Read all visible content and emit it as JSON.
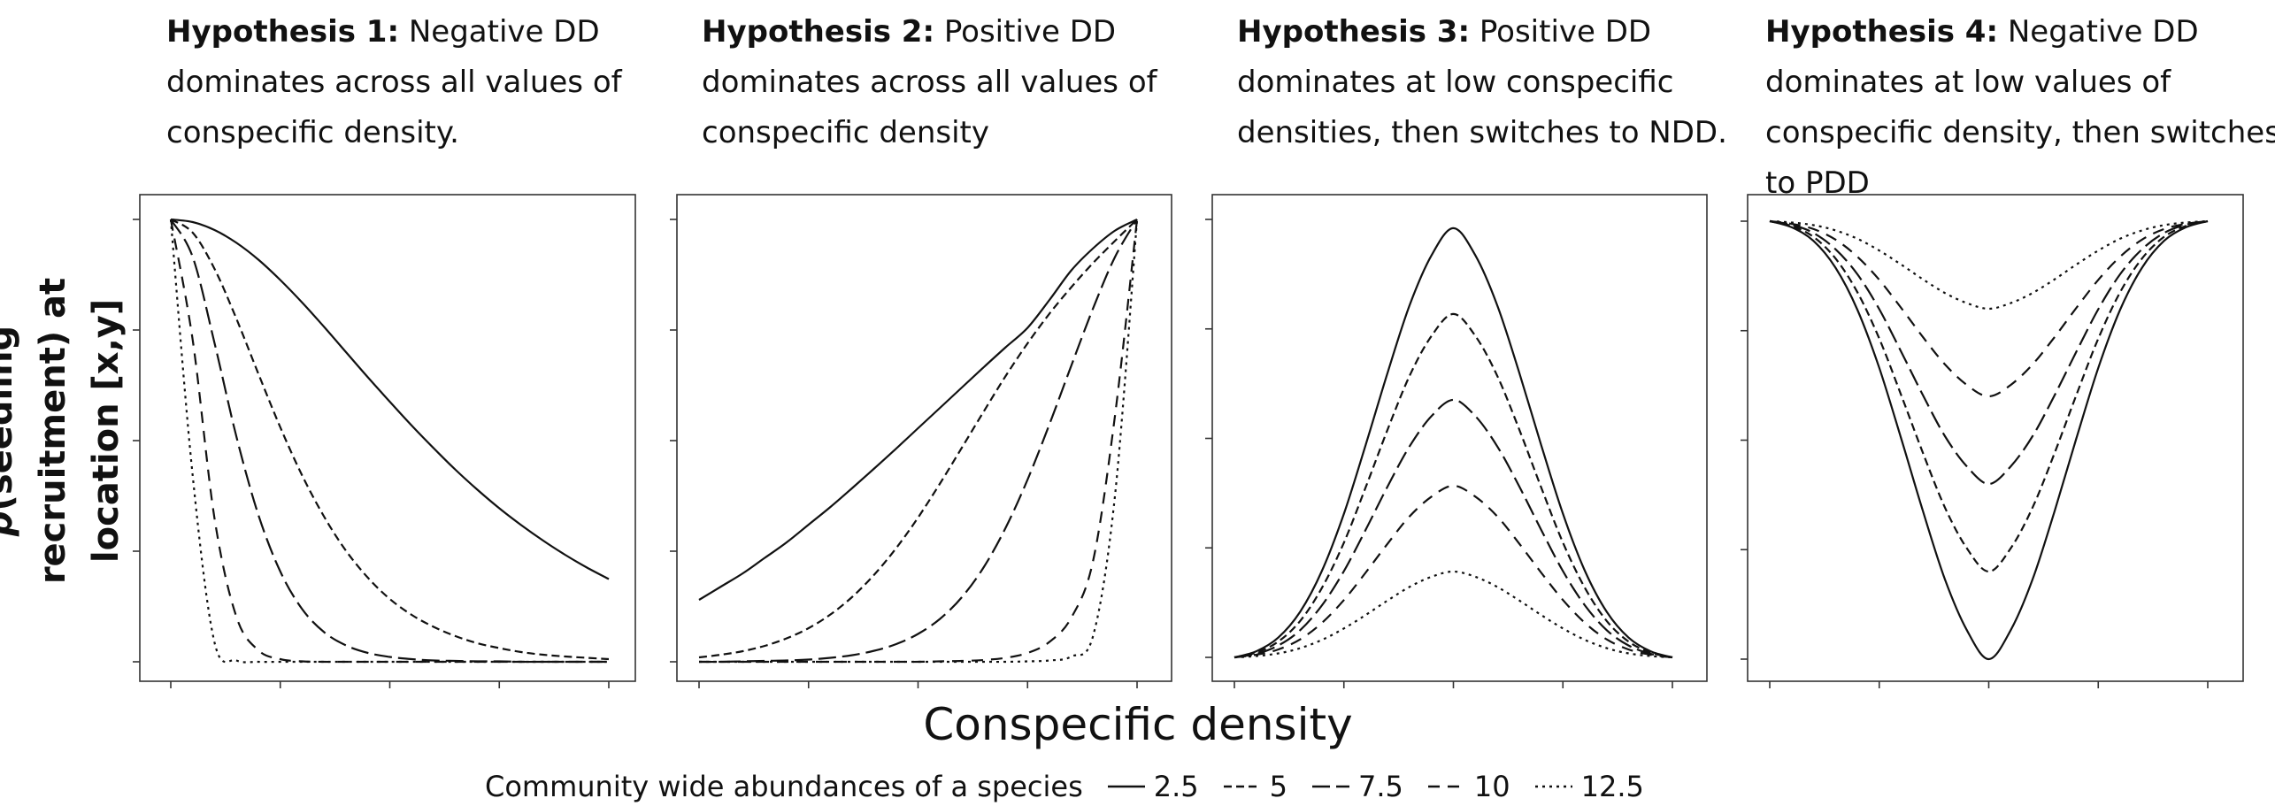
{
  "chart_data": {
    "type": "line",
    "xlabel": "Conspecific density",
    "ylabel_prefix": "p",
    "ylabel_rest": "(seedling recruitment) at location [x,y]",
    "legend": {
      "title": "Community wide abundances of a species",
      "placement": "bottom",
      "entries": [
        {
          "label": "2.5",
          "dash": "solid"
        },
        {
          "label": "5",
          "dash": "short-dash"
        },
        {
          "label": "7.5",
          "dash": "long-dash"
        },
        {
          "label": "10",
          "dash": "dash"
        },
        {
          "label": "12.5",
          "dash": "dot"
        }
      ]
    },
    "panels": [
      {
        "title_bold": "Hypothesis 1:",
        "title_rest": " Negative DD dominates across all values of conspecific density.",
        "xlim": [
          0,
          1
        ],
        "ylim": [
          0,
          1
        ],
        "x": [
          0,
          0.05,
          0.1,
          0.15,
          0.2,
          0.25,
          0.3,
          0.35,
          0.4,
          0.45,
          0.5,
          0.55,
          0.6,
          0.65,
          0.7,
          0.75,
          0.8,
          0.85,
          0.9,
          0.95,
          1
        ],
        "series": [
          {
            "abundance": "2.5",
            "values": [
              1.0,
              0.994,
              0.976,
              0.947,
              0.909,
              0.863,
              0.812,
              0.757,
              0.7,
              0.643,
              0.588,
              0.534,
              0.483,
              0.434,
              0.389,
              0.347,
              0.309,
              0.274,
              0.242,
              0.213,
              0.187
            ]
          },
          {
            "abundance": "5",
            "values": [
              1.0,
              0.97,
              0.888,
              0.775,
              0.651,
              0.53,
              0.421,
              0.328,
              0.251,
              0.19,
              0.142,
              0.106,
              0.079,
              0.058,
              0.042,
              0.031,
              0.022,
              0.016,
              0.012,
              0.009,
              0.006
            ]
          },
          {
            "abundance": "7.5",
            "values": [
              1.0,
              0.915,
              0.72,
              0.508,
              0.332,
              0.204,
              0.119,
              0.067,
              0.037,
              0.02,
              0.011,
              0.006,
              0.003,
              0.002,
              0.001,
              0.001,
              0.0,
              0.0,
              0.0,
              0.0,
              0.0
            ]
          },
          {
            "abundance": "10",
            "values": [
              1.0,
              0.727,
              0.323,
              0.101,
              0.026,
              0.006,
              0.001,
              0.0,
              0.0,
              0.0,
              0.0,
              0.0,
              0.0,
              0.0,
              0.0,
              0.0,
              0.0,
              0.0,
              0.0,
              0.0,
              0.0
            ]
          },
          {
            "abundance": "12.5",
            "values": [
              1.0,
              0.42,
              0.043,
              0.003,
              0.0,
              0.0,
              0.0,
              0.0,
              0.0,
              0.0,
              0.0,
              0.0,
              0.0,
              0.0,
              0.0,
              0.0,
              0.0,
              0.0,
              0.0,
              0.0,
              0.0
            ]
          }
        ]
      },
      {
        "title_bold": "Hypothesis 2:",
        "title_rest": " Positive DD dominates across all values of conspecific density",
        "xlim": [
          0,
          1
        ],
        "ylim": [
          0,
          1
        ],
        "x": [
          0,
          0.05,
          0.1,
          0.15,
          0.2,
          0.25,
          0.3,
          0.35,
          0.4,
          0.45,
          0.5,
          0.55,
          0.6,
          0.65,
          0.7,
          0.75,
          0.8,
          0.85,
          0.9,
          0.95,
          1
        ],
        "series": [
          {
            "abundance": "2.5",
            "values": [
              0.14,
              0.17,
              0.2,
              0.235,
              0.27,
              0.31,
              0.35,
              0.393,
              0.437,
              0.482,
              0.528,
              0.574,
              0.62,
              0.666,
              0.711,
              0.755,
              0.818,
              0.885,
              0.935,
              0.975,
              1.0
            ]
          },
          {
            "abundance": "5",
            "values": [
              0.01,
              0.016,
              0.024,
              0.036,
              0.053,
              0.076,
              0.107,
              0.147,
              0.197,
              0.257,
              0.326,
              0.403,
              0.484,
              0.566,
              0.646,
              0.72,
              0.787,
              0.847,
              0.902,
              0.952,
              1.0
            ]
          },
          {
            "abundance": "7.5",
            "values": [
              0.0,
              0.0,
              0.001,
              0.002,
              0.003,
              0.005,
              0.009,
              0.015,
              0.025,
              0.04,
              0.063,
              0.097,
              0.146,
              0.214,
              0.303,
              0.412,
              0.537,
              0.67,
              0.8,
              0.916,
              1.0
            ]
          },
          {
            "abundance": "10",
            "values": [
              0.0,
              0.0,
              0.0,
              0.0,
              0.0,
              0.0,
              0.0,
              0.0,
              0.0,
              0.0,
              0.0,
              0.001,
              0.002,
              0.004,
              0.009,
              0.02,
              0.045,
              0.1,
              0.23,
              0.56,
              1.0
            ]
          },
          {
            "abundance": "12.5",
            "values": [
              0.0,
              0.0,
              0.0,
              0.0,
              0.0,
              0.0,
              0.0,
              0.0,
              0.0,
              0.0,
              0.0,
              0.0,
              0.0,
              0.0,
              0.0,
              0.001,
              0.003,
              0.012,
              0.06,
              0.38,
              1.0
            ]
          }
        ]
      },
      {
        "title_bold": "Hypothesis 3:",
        "title_rest": " Positive DD dominates at low conspecific densities, then switches to NDD.",
        "xlim": [
          0,
          1
        ],
        "ylim": [
          0,
          1
        ],
        "x": [
          0,
          0.05,
          0.1,
          0.15,
          0.2,
          0.25,
          0.3,
          0.35,
          0.4,
          0.45,
          0.5,
          0.55,
          0.6,
          0.65,
          0.7,
          0.75,
          0.8,
          0.85,
          0.9,
          0.95,
          1
        ],
        "series": [
          {
            "abundance": "2.5",
            "values": [
              0.0,
              0.014,
              0.045,
              0.104,
              0.198,
              0.328,
              0.486,
              0.651,
              0.804,
              0.918,
              0.98,
              0.918,
              0.804,
              0.651,
              0.486,
              0.328,
              0.198,
              0.104,
              0.045,
              0.014,
              0.0
            ]
          },
          {
            "abundance": "5",
            "values": [
              0.0,
              0.011,
              0.036,
              0.083,
              0.159,
              0.262,
              0.389,
              0.521,
              0.643,
              0.734,
              0.784,
              0.734,
              0.643,
              0.521,
              0.389,
              0.262,
              0.159,
              0.083,
              0.036,
              0.011,
              0.0
            ]
          },
          {
            "abundance": "7.5",
            "values": [
              0.0,
              0.008,
              0.027,
              0.062,
              0.119,
              0.197,
              0.292,
              0.391,
              0.482,
              0.551,
              0.588,
              0.551,
              0.482,
              0.391,
              0.292,
              0.197,
              0.119,
              0.062,
              0.027,
              0.008,
              0.0
            ]
          },
          {
            "abundance": "10",
            "values": [
              0.0,
              0.006,
              0.018,
              0.041,
              0.079,
              0.131,
              0.194,
              0.26,
              0.322,
              0.367,
              0.392,
              0.367,
              0.322,
              0.26,
              0.194,
              0.131,
              0.079,
              0.041,
              0.018,
              0.006,
              0.0
            ]
          },
          {
            "abundance": "12.5",
            "values": [
              0.0,
              0.003,
              0.009,
              0.021,
              0.04,
              0.066,
              0.097,
              0.13,
              0.161,
              0.184,
              0.196,
              0.184,
              0.161,
              0.13,
              0.097,
              0.066,
              0.04,
              0.021,
              0.009,
              0.003,
              0.0
            ]
          }
        ]
      },
      {
        "title_bold": "Hypothesis 4:",
        "title_rest": " Negative DD dominates at low values of conspecific density, then switches to PDD",
        "xlim": [
          0,
          1
        ],
        "ylim": [
          0,
          1
        ],
        "x": [
          0,
          0.05,
          0.1,
          0.15,
          0.2,
          0.25,
          0.3,
          0.35,
          0.4,
          0.45,
          0.5,
          0.55,
          0.6,
          0.65,
          0.7,
          0.75,
          0.8,
          0.85,
          0.9,
          0.95,
          1
        ],
        "series": [
          {
            "abundance": "2.5",
            "values": [
              1.0,
              0.986,
              0.955,
              0.894,
              0.798,
              0.665,
              0.504,
              0.337,
              0.182,
              0.066,
              0.0,
              0.066,
              0.182,
              0.337,
              0.504,
              0.665,
              0.798,
              0.894,
              0.955,
              0.986,
              1.0
            ]
          },
          {
            "abundance": "5",
            "values": [
              1.0,
              0.989,
              0.964,
              0.915,
              0.838,
              0.732,
              0.603,
              0.47,
              0.346,
              0.253,
              0.2,
              0.253,
              0.346,
              0.47,
              0.603,
              0.732,
              0.838,
              0.915,
              0.964,
              0.989,
              1.0
            ]
          },
          {
            "abundance": "7.5",
            "values": [
              1.0,
              0.992,
              0.973,
              0.936,
              0.879,
              0.799,
              0.702,
              0.602,
              0.509,
              0.44,
              0.4,
              0.44,
              0.509,
              0.602,
              0.702,
              0.799,
              0.879,
              0.936,
              0.973,
              0.992,
              1.0
            ]
          },
          {
            "abundance": "10",
            "values": [
              1.0,
              0.994,
              0.982,
              0.958,
              0.919,
              0.866,
              0.802,
              0.735,
              0.673,
              0.626,
              0.6,
              0.626,
              0.673,
              0.735,
              0.802,
              0.866,
              0.919,
              0.958,
              0.982,
              0.994,
              1.0
            ]
          },
          {
            "abundance": "12.5",
            "values": [
              1.0,
              0.997,
              0.991,
              0.979,
              0.96,
              0.933,
              0.901,
              0.867,
              0.836,
              0.813,
              0.8,
              0.813,
              0.836,
              0.867,
              0.901,
              0.933,
              0.96,
              0.979,
              0.991,
              0.997,
              1.0
            ]
          }
        ]
      }
    ]
  }
}
